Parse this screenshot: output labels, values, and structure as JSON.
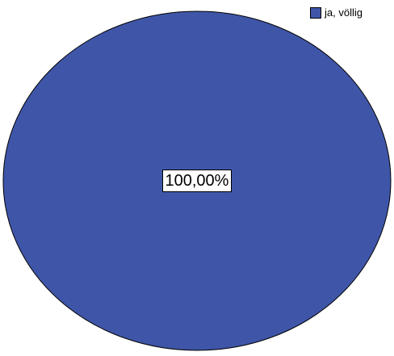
{
  "chart_data": {
    "type": "pie",
    "title": "",
    "categories": [
      "ja, völlig"
    ],
    "values": [
      100
    ],
    "data_labels": [
      "100,00%"
    ],
    "colors": [
      "#3F56A8"
    ],
    "legend": {
      "position": "top-right",
      "entries": [
        "ja, völlig"
      ]
    }
  }
}
